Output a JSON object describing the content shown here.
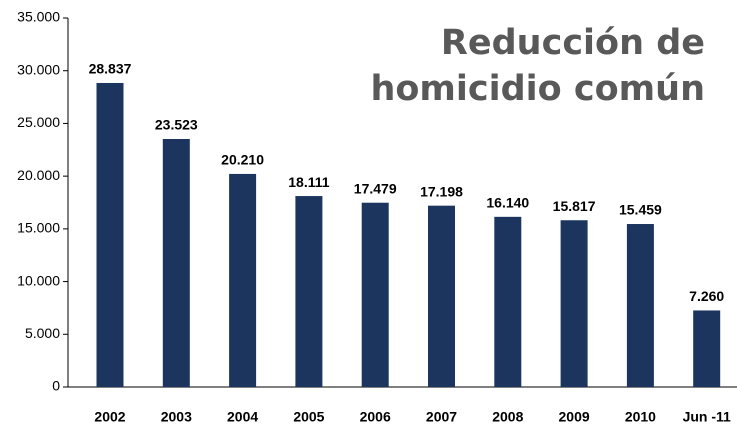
{
  "chart_data": {
    "type": "bar",
    "title": [
      "Reducción de",
      "homicidio común"
    ],
    "categories": [
      "2002",
      "2003",
      "2004",
      "2005",
      "2006",
      "2007",
      "2008",
      "2009",
      "2010",
      "Jun -11"
    ],
    "values": [
      28837,
      23523,
      20210,
      18111,
      17479,
      17198,
      16140,
      15817,
      15459,
      7260
    ],
    "value_labels": [
      "28.837",
      "23.523",
      "20.210",
      "18.111",
      "17.479",
      "17.198",
      "16.140",
      "15.817",
      "15.459",
      "7.260"
    ],
    "color": "#1c355e",
    "ylim": [
      0,
      35000
    ],
    "yticks": [
      {
        "value": 0,
        "label": "0"
      },
      {
        "value": 5000,
        "label": "5.000"
      },
      {
        "value": 10000,
        "label": "10.000"
      },
      {
        "value": 15000,
        "label": "15.000"
      },
      {
        "value": 20000,
        "label": "20.000"
      },
      {
        "value": 25000,
        "label": "25.000"
      },
      {
        "value": 30000,
        "label": "30.000"
      },
      {
        "value": 35000,
        "label": "35.000"
      }
    ],
    "grid": false
  }
}
